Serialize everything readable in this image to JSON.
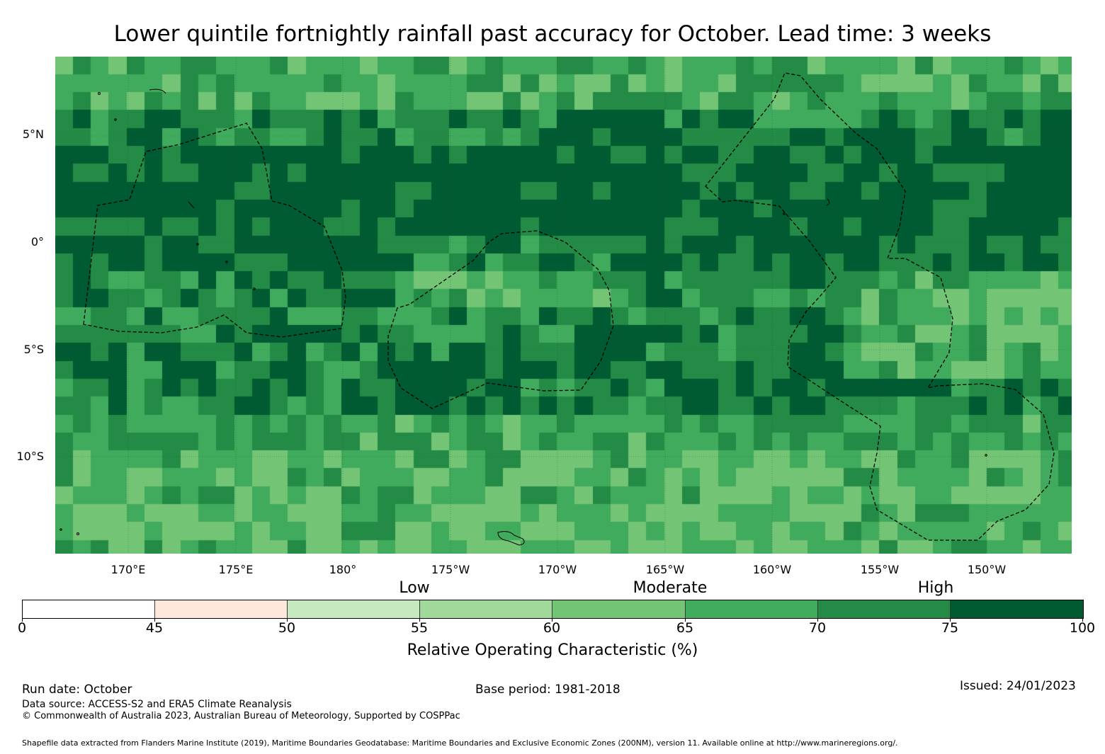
{
  "title": "Lower quintile fortnightly rainfall past accuracy for October. Lead time: 3 weeks",
  "map": {
    "lat_labels": [
      "5°N",
      "0°",
      "5°S",
      "10°S"
    ],
    "lon_labels": [
      "170°E",
      "175°E",
      "180°",
      "175°W",
      "170°W",
      "165°W",
      "160°W",
      "155°W",
      "150°W"
    ],
    "tiers": [
      "Low",
      "Moderate",
      "High"
    ]
  },
  "colorbar": {
    "title": "Relative Operating Characteristic (%)",
    "ticks": [
      "0",
      "45",
      "50",
      "55",
      "60",
      "65",
      "70",
      "75",
      "100"
    ],
    "colors": [
      "#ffffff",
      "#fee8dc",
      "#c7e9c0",
      "#a1d99b",
      "#74c476",
      "#41ab5d",
      "#238b45",
      "#005a32"
    ]
  },
  "footer": {
    "run_date": "Run date: October",
    "base_period": "Base period: 1981-2018",
    "issued": "Issued: 24/01/2023",
    "data_source": "Data source: ACCESS-S2 and ERA5 Climate Reanalysis",
    "copyright": "© Commonwealth of Australia 2023, Australian Bureau of Meteorology, Supported by COSPPac",
    "shapefile_note": "Shapefile data extracted from Flanders Marine Institute (2019), Maritime Boundaries Geodatabase: Maritime Boundaries and Exclusive Economic Zones (200NM), version 11. Available online at http://www.marineregions.org/."
  }
}
